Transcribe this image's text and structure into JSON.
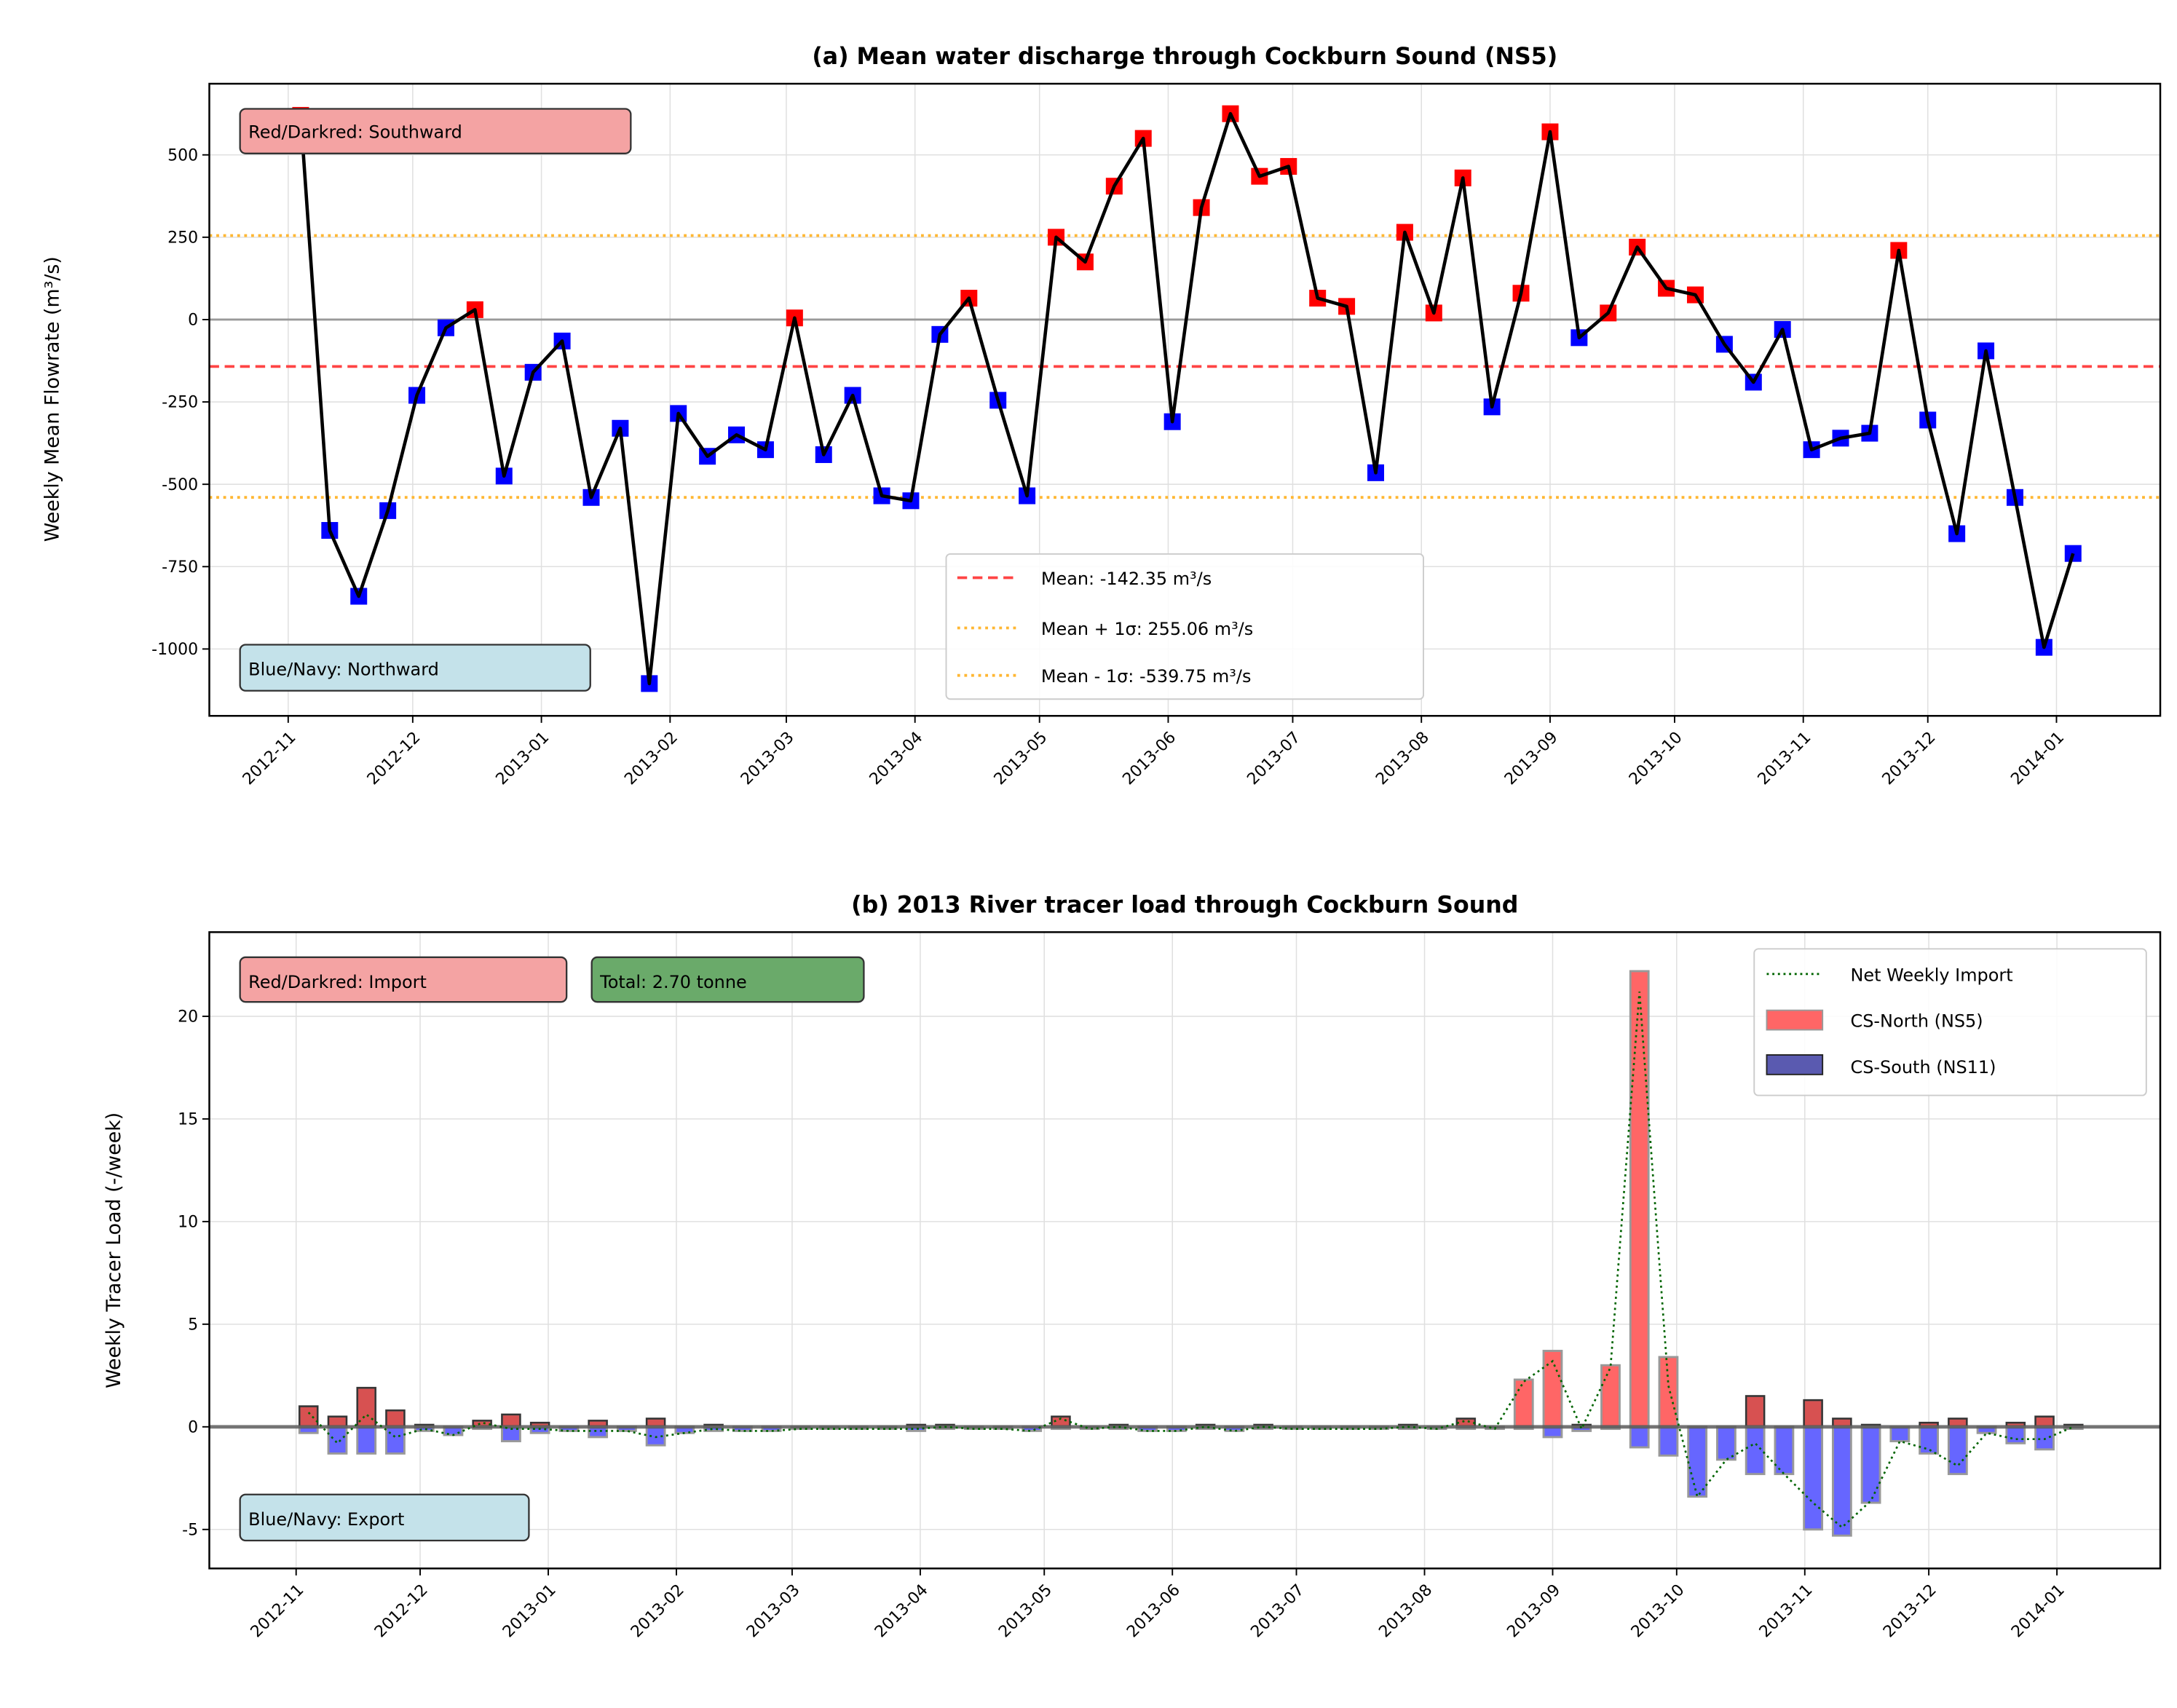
{
  "chart_data": [
    {
      "type": "line",
      "title": "(a) Mean water discharge through Cockburn Sound (NS5)",
      "xlabel": "",
      "ylabel": "Weekly Mean Flowrate (m³/s)",
      "ylim": [
        -1203,
        716
      ],
      "yticks": [
        -1000,
        -750,
        -500,
        -250,
        0,
        250,
        500
      ],
      "xlim": [
        "2012-10-13",
        "2014-01-26"
      ],
      "xticks": [
        "2012-11",
        "2012-12",
        "2013-01",
        "2013-02",
        "2013-03",
        "2013-04",
        "2013-05",
        "2013-06",
        "2013-07",
        "2013-08",
        "2013-09",
        "2013-10",
        "2013-11",
        "2013-12",
        "2014-01"
      ],
      "x_start": "2012-11-04",
      "x_step_days": 7,
      "values": [
        620,
        -640,
        -840,
        -580,
        -230,
        -25,
        30,
        -475,
        -160,
        -65,
        -540,
        -330,
        -1105,
        -285,
        -415,
        -350,
        -395,
        5,
        -410,
        -230,
        -535,
        -550,
        -45,
        65,
        -245,
        -535,
        250,
        175,
        405,
        550,
        -310,
        340,
        625,
        435,
        465,
        65,
        40,
        -465,
        265,
        20,
        430,
        -265,
        80,
        570,
        -55,
        20,
        220,
        95,
        75,
        -75,
        -190,
        -30,
        -395,
        -360,
        -345,
        210,
        -305,
        -650,
        -95,
        -540,
        -995,
        -710
      ],
      "mean": -142.35,
      "mean_plus_sigma": 255.06,
      "mean_minus_sigma": -539.75,
      "legend": [
        "Mean: -142.35 m³/s",
        "Mean + 1σ: 255.06 m³/s",
        "Mean - 1σ: -539.75 m³/s"
      ],
      "legend_position": "lower-center",
      "annotations": [
        "Red/Darkred: Southward",
        "Blue/Navy: Northward"
      ],
      "colors": {
        "positive": "#ff0000",
        "negative": "#0000ff",
        "line": "#000000",
        "mean": "#ff4444",
        "sigma": "#ffb733"
      }
    },
    {
      "type": "bar",
      "title": "(b) 2013 River tracer load through Cockburn Sound",
      "xlabel": "",
      "ylabel": "Weekly Tracer Load (-/week)",
      "ylim": [
        -6.9,
        24.1
      ],
      "yticks": [
        -5,
        0,
        5,
        10,
        15,
        20
      ],
      "xlim": [
        "2012-10-11",
        "2014-01-26"
      ],
      "xticks": [
        "2012-11",
        "2012-12",
        "2013-01",
        "2013-02",
        "2013-03",
        "2013-04",
        "2013-05",
        "2013-06",
        "2013-07",
        "2013-08",
        "2013-09",
        "2013-10",
        "2013-11",
        "2013-12",
        "2014-01"
      ],
      "x_start": "2012-11-04",
      "x_step_days": 7,
      "series": [
        {
          "name": "CS-North (NS5)",
          "values": [
            1.0,
            0.5,
            1.9,
            0.8,
            0.1,
            0.0,
            0.3,
            0.6,
            0.2,
            0.0,
            0.3,
            0.0,
            0.4,
            0.0,
            0.1,
            0.0,
            0.0,
            0.0,
            0.0,
            0.0,
            0.0,
            0.1,
            0.1,
            0.0,
            0.0,
            0.0,
            0.5,
            0.0,
            0.1,
            0.0,
            0.0,
            0.1,
            0.0,
            0.1,
            0.0,
            0.0,
            0.0,
            0.0,
            0.1,
            0.0,
            0.4,
            0.0,
            2.3,
            3.7,
            0.1,
            3.0,
            22.2,
            3.4,
            0.0,
            0.0,
            1.5,
            0.0,
            1.3,
            0.4,
            0.1,
            0.0,
            0.2,
            0.4,
            0.0,
            0.2,
            0.5,
            0.1
          ]
        },
        {
          "name": "CS-South (NS11)",
          "values": [
            -0.3,
            -1.3,
            -1.3,
            -1.3,
            -0.2,
            -0.4,
            -0.1,
            -0.7,
            -0.3,
            -0.2,
            -0.5,
            -0.2,
            -0.9,
            -0.3,
            -0.2,
            -0.2,
            -0.2,
            -0.1,
            -0.1,
            -0.1,
            -0.1,
            -0.2,
            -0.1,
            -0.1,
            -0.1,
            -0.2,
            -0.1,
            -0.1,
            -0.1,
            -0.2,
            -0.2,
            -0.1,
            -0.2,
            -0.1,
            -0.1,
            -0.1,
            -0.1,
            -0.1,
            -0.1,
            -0.1,
            -0.1,
            -0.1,
            -0.1,
            -0.5,
            -0.2,
            -0.1,
            -1.0,
            -1.4,
            -3.4,
            -1.6,
            -2.3,
            -2.3,
            -5.0,
            -5.3,
            -3.7,
            -0.7,
            -1.3,
            -2.3,
            -0.3,
            -0.8,
            -1.1,
            -0.1
          ]
        }
      ],
      "net_line_name": "Net Weekly Import",
      "legend": [
        "Net Weekly Import",
        "CS-North (NS5)",
        "CS-South (NS11)"
      ],
      "legend_position": "upper-right",
      "annotations": [
        "Red/Darkred: Import",
        "Total: 2.70 tonne",
        "Blue/Navy: Export"
      ],
      "colors": {
        "north": "#ff6666",
        "south": "#6666ff",
        "net": "#006400"
      }
    }
  ]
}
